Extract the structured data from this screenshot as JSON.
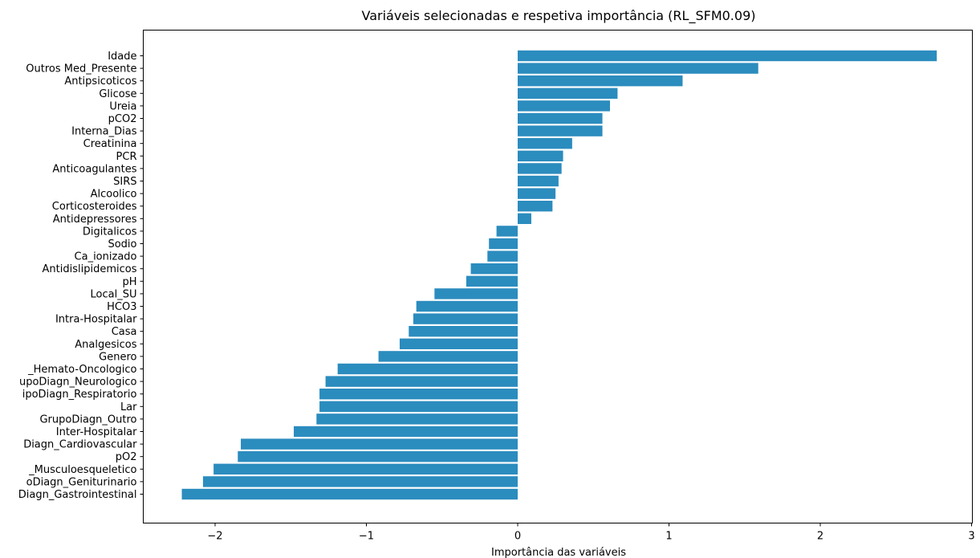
{
  "chart_data": {
    "type": "bar",
    "orientation": "horizontal",
    "title": "Variáveis selecionadas e respetiva importância (RL_SFM0.09)",
    "xlabel": "Importância das variáveis",
    "ylabel": "",
    "xlim": [
      -2.5,
      3.0
    ],
    "xticks": [
      -2,
      -1,
      0,
      1,
      2,
      3
    ],
    "xtick_labels": [
      "−2",
      "−1",
      "0",
      "1",
      "2",
      "3"
    ],
    "bar_color": "#2b8cbe",
    "grid": false,
    "categories": [
      "Idade",
      "Outros Med_Presente",
      "Antipsicoticos",
      "Glicose",
      "Ureia",
      "pCO2",
      "Interna_Dias",
      "Creatinina",
      "PCR",
      "Anticoagulantes",
      "SIRS",
      "Alcoolico",
      "Corticosteroides",
      "Antidepressores",
      "Digitalicos",
      "Sodio",
      "Ca_ionizado",
      "Antidislipidemicos",
      "pH",
      "Local_SU",
      "HCO3",
      "Intra-Hospitalar",
      "Casa",
      "Analgesicos",
      "Genero",
      "_Hemato-Oncologico",
      "upoDiagn_Neurologico",
      "ipoDiagn_Respiratorio",
      "Lar",
      "GrupoDiagn_Outro",
      "Inter-Hospitalar",
      "Diagn_Cardiovascular",
      "pO2",
      "_Musculoesqueletico",
      "oDiagn_Geniturinario",
      "Diagn_Gastrointestinal"
    ],
    "values": [
      2.77,
      1.59,
      1.09,
      0.66,
      0.61,
      0.56,
      0.56,
      0.36,
      0.3,
      0.29,
      0.27,
      0.25,
      0.23,
      0.09,
      -0.14,
      -0.19,
      -0.2,
      -0.31,
      -0.34,
      -0.55,
      -0.67,
      -0.69,
      -0.72,
      -0.78,
      -0.92,
      -1.19,
      -1.27,
      -1.31,
      -1.31,
      -1.33,
      -1.48,
      -1.83,
      -1.85,
      -2.01,
      -2.08,
      -2.22
    ]
  }
}
